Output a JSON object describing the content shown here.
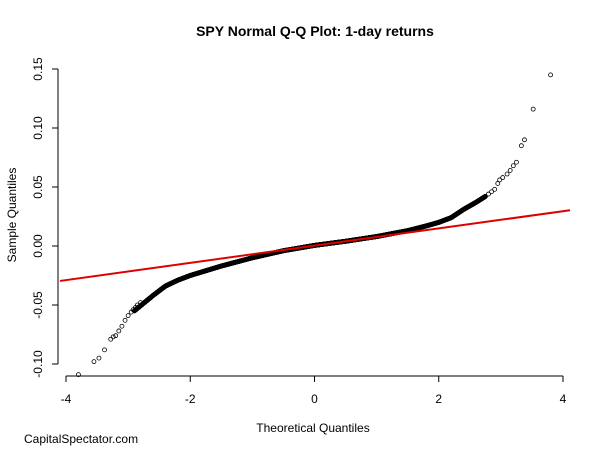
{
  "chart_data": {
    "type": "scatter",
    "title": "SPY Normal Q-Q Plot: 1-day returns",
    "xlabel": "Theoretical Quantiles",
    "ylabel": "Sample Quantiles",
    "xlim": [
      -4,
      4
    ],
    "ylim": [
      -0.11,
      0.15
    ],
    "x_ticks": [
      -4,
      -2,
      0,
      2,
      4
    ],
    "x_tick_labels": [
      "-4",
      "-2",
      "0",
      "2",
      "4"
    ],
    "y_ticks": [
      -0.1,
      -0.05,
      0.0,
      0.05,
      0.1,
      0.15
    ],
    "y_tick_labels": [
      "-0.10",
      "-0.05",
      "0.00",
      "0.05",
      "0.10",
      "0.15"
    ],
    "grid": false,
    "point_color": "#000000",
    "reference_line": {
      "color": "#dd0000",
      "slope": 0.0073,
      "intercept": 0.0003
    },
    "series": [
      {
        "name": "sample quantiles",
        "tail_points": [
          [
            -3.8,
            -0.109
          ],
          [
            -3.55,
            -0.098
          ],
          [
            -3.47,
            -0.095
          ],
          [
            -3.38,
            -0.088
          ],
          [
            -3.28,
            -0.079
          ],
          [
            -3.24,
            -0.077
          ],
          [
            -3.2,
            -0.076
          ],
          [
            -3.15,
            -0.072
          ],
          [
            -3.1,
            -0.068
          ],
          [
            -3.05,
            -0.063
          ],
          [
            -3.0,
            -0.059
          ],
          [
            -2.95,
            -0.056
          ],
          [
            -2.92,
            -0.054
          ],
          [
            -2.88,
            -0.052
          ],
          [
            -2.85,
            -0.05
          ],
          [
            -2.8,
            -0.048
          ],
          [
            2.75,
            0.042
          ],
          [
            2.8,
            0.044
          ],
          [
            2.85,
            0.046
          ],
          [
            2.9,
            0.048
          ],
          [
            2.95,
            0.053
          ],
          [
            2.98,
            0.056
          ],
          [
            3.03,
            0.058
          ],
          [
            3.1,
            0.061
          ],
          [
            3.15,
            0.064
          ],
          [
            3.2,
            0.068
          ],
          [
            3.25,
            0.071
          ],
          [
            3.33,
            0.085
          ],
          [
            3.38,
            0.09
          ],
          [
            3.52,
            0.116
          ],
          [
            3.8,
            0.145
          ]
        ],
        "body_knots": [
          [
            -2.9,
            -0.055
          ],
          [
            -2.6,
            -0.042
          ],
          [
            -2.4,
            -0.034
          ],
          [
            -2.2,
            -0.029
          ],
          [
            -2.0,
            -0.025
          ],
          [
            -1.5,
            -0.017
          ],
          [
            -1.0,
            -0.01
          ],
          [
            -0.5,
            -0.004
          ],
          [
            0.0,
            0.0005
          ],
          [
            0.5,
            0.004
          ],
          [
            1.0,
            0.008
          ],
          [
            1.5,
            0.013
          ],
          [
            1.8,
            0.017
          ],
          [
            2.0,
            0.02
          ],
          [
            2.2,
            0.024
          ],
          [
            2.4,
            0.031
          ],
          [
            2.6,
            0.037
          ],
          [
            2.75,
            0.042
          ]
        ],
        "body_point_count": 2400
      }
    ]
  },
  "footer": {
    "credit": "CapitalSpectator.com"
  }
}
